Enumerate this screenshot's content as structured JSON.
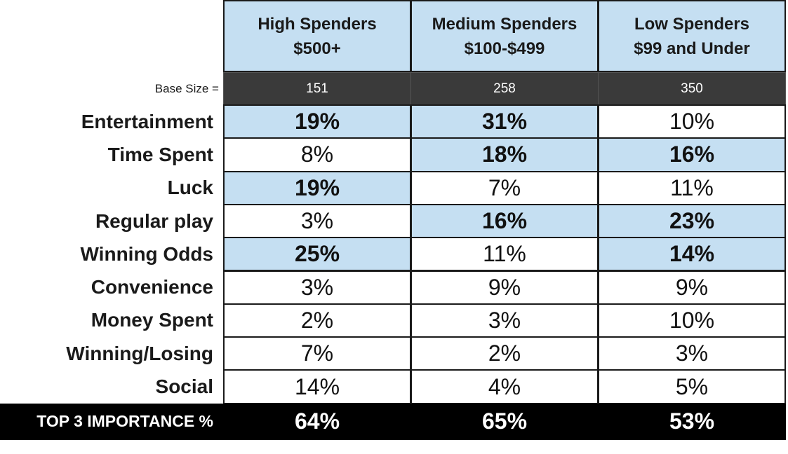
{
  "chart_data": {
    "type": "table",
    "columns": [
      {
        "name": "High Spenders",
        "range": "$500+"
      },
      {
        "name": "Medium Spenders",
        "range": "$100-$499"
      },
      {
        "name": "Low Spenders",
        "range": "$99 and Under"
      }
    ],
    "base_label": "Base Size =",
    "base_sizes": [
      "151",
      "258",
      "350"
    ],
    "rows": [
      {
        "label": "Entertainment",
        "values": [
          "19%",
          "31%",
          "10%"
        ],
        "top3": [
          true,
          true,
          false
        ]
      },
      {
        "label": "Time Spent",
        "values": [
          "8%",
          "18%",
          "16%"
        ],
        "top3": [
          false,
          true,
          true
        ]
      },
      {
        "label": "Luck",
        "values": [
          "19%",
          "7%",
          "11%"
        ],
        "top3": [
          true,
          false,
          false
        ]
      },
      {
        "label": "Regular play",
        "values": [
          "3%",
          "16%",
          "23%"
        ],
        "top3": [
          false,
          true,
          true
        ]
      },
      {
        "label": "Winning Odds",
        "values": [
          "25%",
          "11%",
          "14%"
        ],
        "top3": [
          true,
          false,
          true
        ]
      },
      {
        "label": "Convenience",
        "values": [
          "3%",
          "9%",
          "9%"
        ],
        "top3": [
          false,
          false,
          false
        ]
      },
      {
        "label": "Money Spent",
        "values": [
          "2%",
          "3%",
          "10%"
        ],
        "top3": [
          false,
          false,
          false
        ]
      },
      {
        "label": "Winning/Losing",
        "values": [
          "7%",
          "2%",
          "3%"
        ],
        "top3": [
          false,
          false,
          false
        ]
      },
      {
        "label": "Social",
        "values": [
          "14%",
          "4%",
          "5%"
        ],
        "top3": [
          false,
          false,
          false
        ]
      }
    ],
    "total": {
      "label": "TOP 3 IMPORTANCE %",
      "values": [
        "64%",
        "65%",
        "53%"
      ]
    },
    "colors": {
      "highlight": "#c5dff2",
      "header_dark": "#3a3a3a",
      "total_bg": "#000000"
    }
  }
}
